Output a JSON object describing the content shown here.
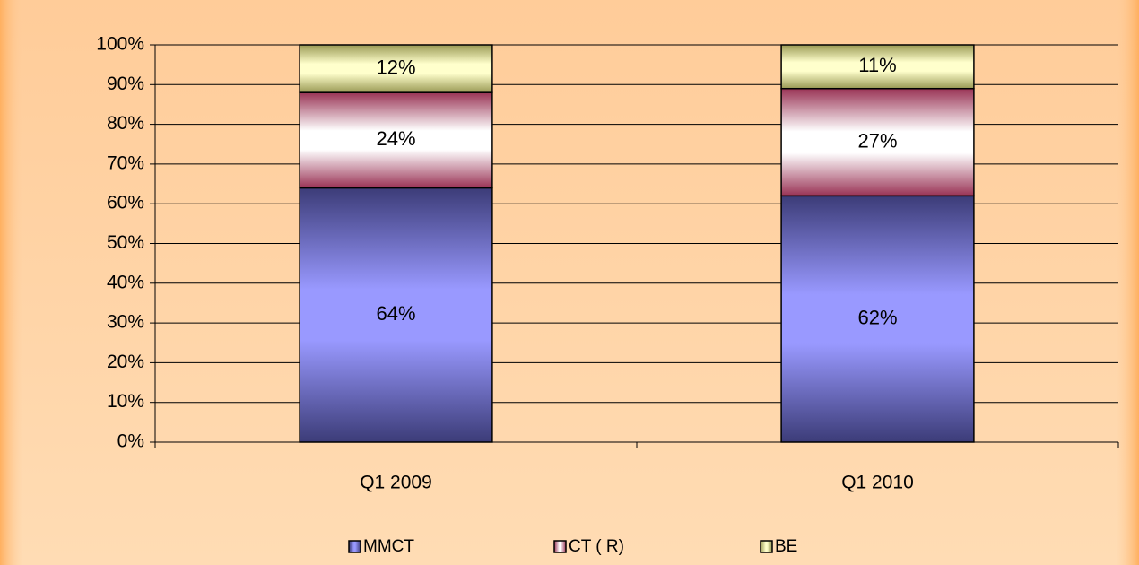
{
  "chart_data": {
    "type": "stacked_bar",
    "categories": [
      "Q1 2009",
      "Q1 2010"
    ],
    "series": [
      {
        "name": "MMCT",
        "color": "#9999ff",
        "values": [
          64,
          62
        ],
        "value_labels": [
          "64%",
          "62%"
        ]
      },
      {
        "name": "CT ( R)",
        "color": "#ffffff",
        "values": [
          24,
          27
        ],
        "value_labels": [
          "24%",
          "27%"
        ]
      },
      {
        "name": "BE",
        "color": "#ffffcc",
        "values": [
          12,
          11
        ],
        "value_labels": [
          "12%",
          "11%"
        ]
      }
    ],
    "ylim": [
      0,
      100
    ],
    "yticks": [
      {
        "value": 0,
        "label": "0%"
      },
      {
        "value": 10,
        "label": "10%"
      },
      {
        "value": 20,
        "label": "20%"
      },
      {
        "value": 30,
        "label": "30%"
      },
      {
        "value": 40,
        "label": "40%"
      },
      {
        "value": 50,
        "label": "50%"
      },
      {
        "value": 60,
        "label": "60%"
      },
      {
        "value": 70,
        "label": "70%"
      },
      {
        "value": 80,
        "label": "80%"
      },
      {
        "value": 90,
        "label": "90%"
      },
      {
        "value": 100,
        "label": "100%"
      }
    ],
    "grid": true,
    "legend": "bottom"
  }
}
